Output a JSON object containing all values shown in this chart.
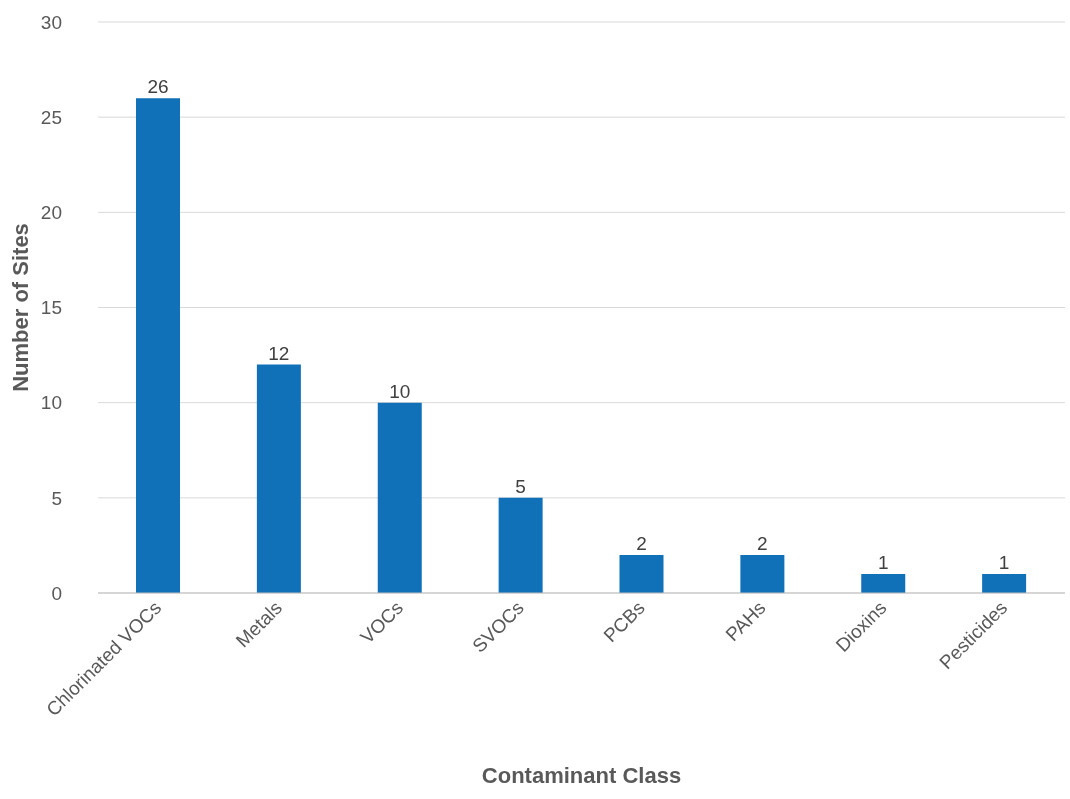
{
  "chart_data": {
    "type": "bar",
    "xlabel": "Contaminant Class",
    "ylabel": "Number of Sites",
    "categories": [
      "Chlorinated VOCs",
      "Metals",
      "VOCs",
      "SVOCs",
      "PCBs",
      "PAHs",
      "Dioxins",
      "Pesticides"
    ],
    "values": [
      26,
      12,
      10,
      5,
      2,
      2,
      1,
      1
    ],
    "data_labels": true,
    "color": "#1070b8",
    "ylim": [
      0,
      30
    ],
    "yticks": [
      0,
      5,
      10,
      15,
      20,
      25,
      30
    ],
    "grid": "y",
    "legend": false
  }
}
